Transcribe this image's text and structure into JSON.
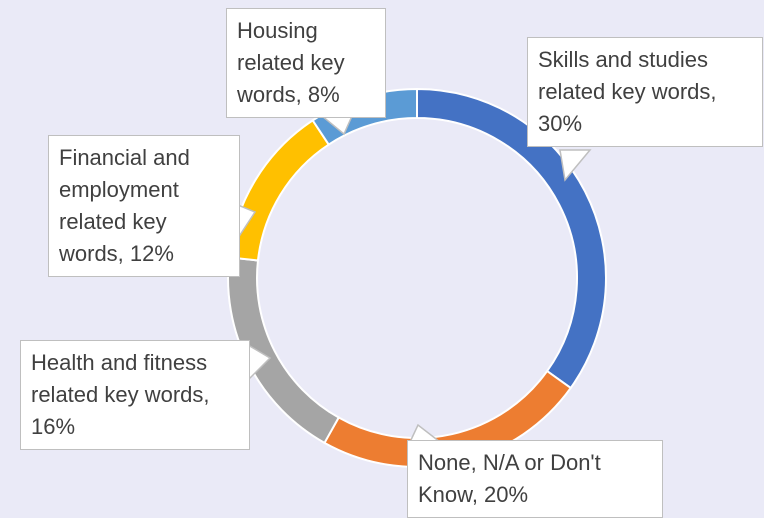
{
  "chart_data": {
    "type": "donut",
    "values": [
      30,
      20,
      16,
      12,
      8
    ],
    "value_labels": [
      "Skills and studies related key words, 30%",
      "None, N/A or Don't Know, 20%",
      "Health and fitness related key words, 16%",
      "Financial and employment related key words, 12%",
      "Housing related key words, 8%"
    ],
    "colors": [
      "#4472c4",
      "#ed7d31",
      "#a5a5a5",
      "#ffc000",
      "#5b9bd5"
    ]
  }
}
